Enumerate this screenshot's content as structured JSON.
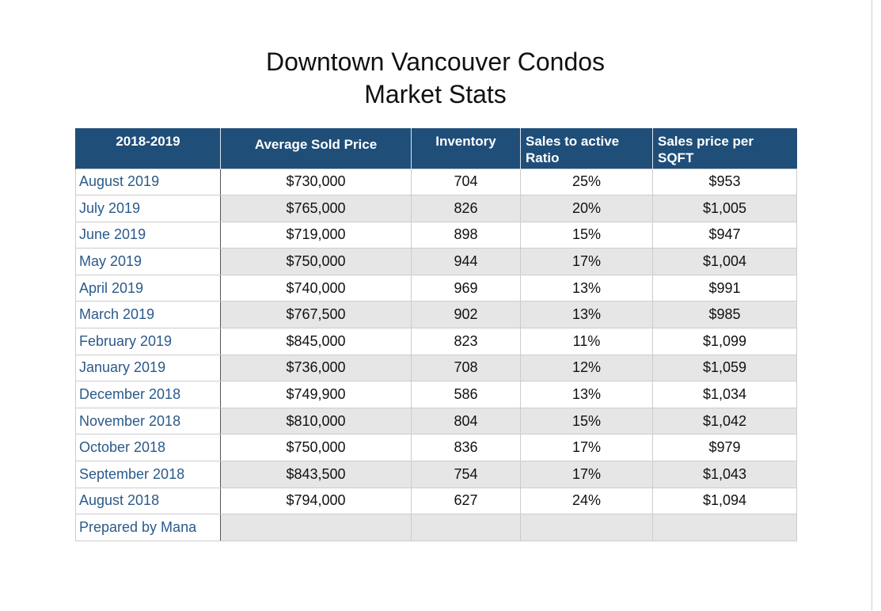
{
  "title": {
    "line1": "Downtown Vancouver Condos",
    "line2": "Market Stats"
  },
  "table": {
    "headers": {
      "period": "2018-2019",
      "avg_price": "Average Sold Price",
      "inventory": "Inventory",
      "ratio_line1": "Sales to active",
      "ratio_line2": "Ratio",
      "sqft_line1": "Sales price per",
      "sqft_line2": "SQFT"
    },
    "rows": [
      {
        "period": "August 2019",
        "avg_price": "$730,000",
        "inventory": "704",
        "ratio": "25%",
        "sqft": "$953"
      },
      {
        "period": "July 2019",
        "avg_price": "$765,000",
        "inventory": "826",
        "ratio": "20%",
        "sqft": "$1,005"
      },
      {
        "period": "June 2019",
        "avg_price": "$719,000",
        "inventory": "898",
        "ratio": "15%",
        "sqft": "$947"
      },
      {
        "period": "May 2019",
        "avg_price": "$750,000",
        "inventory": "944",
        "ratio": "17%",
        "sqft": "$1,004"
      },
      {
        "period": "April 2019",
        "avg_price": "$740,000",
        "inventory": "969",
        "ratio": "13%",
        "sqft": "$991"
      },
      {
        "period": "March 2019",
        "avg_price": "$767,500",
        "inventory": "902",
        "ratio": "13%",
        "sqft": "$985"
      },
      {
        "period": "February 2019",
        "avg_price": "$845,000",
        "inventory": "823",
        "ratio": "11%",
        "sqft": "$1,099"
      },
      {
        "period": "January 2019",
        "avg_price": "$736,000",
        "inventory": "708",
        "ratio": "12%",
        "sqft": "$1,059"
      },
      {
        "period": "December 2018",
        "avg_price": "$749,900",
        "inventory": "586",
        "ratio": "13%",
        "sqft": "$1,034"
      },
      {
        "period": "November 2018",
        "avg_price": "$810,000",
        "inventory": "804",
        "ratio": "15%",
        "sqft": "$1,042"
      },
      {
        "period": "October 2018",
        "avg_price": "$750,000",
        "inventory": "836",
        "ratio": "17%",
        "sqft": "$979"
      },
      {
        "period": "September 2018",
        "avg_price": "$843,500",
        "inventory": "754",
        "ratio": "17%",
        "sqft": "$1,043"
      },
      {
        "period": "August 2018",
        "avg_price": "$794,000",
        "inventory": "627",
        "ratio": "24%",
        "sqft": "$1,094"
      }
    ],
    "footer": "Prepared by Mana"
  },
  "colors": {
    "header_bg": "#1f4e79",
    "header_text": "#ffffff",
    "period_text": "#2b5a8a",
    "alt_row_bg": "#e6e6e6"
  }
}
